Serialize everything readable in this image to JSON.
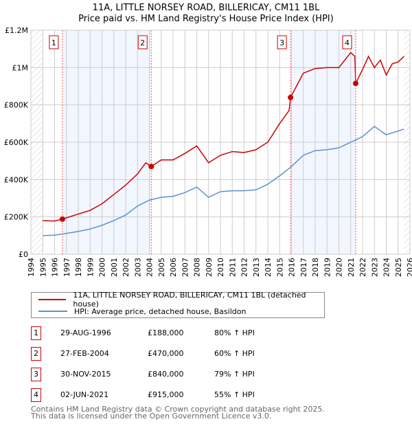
{
  "chart_data": {
    "type": "line",
    "title": "11A, LITTLE NORSEY ROAD, BILLERICAY, CM11 1BL",
    "subtitle": "Price paid vs. HM Land Registry's House Price Index (HPI)",
    "xlim": [
      1994,
      2026
    ],
    "ylim": [
      0,
      1200000
    ],
    "x_ticks": [
      "1994",
      "1995",
      "1996",
      "1997",
      "1998",
      "1999",
      "2000",
      "2001",
      "2002",
      "2003",
      "2004",
      "2005",
      "2006",
      "2007",
      "2008",
      "2009",
      "2010",
      "2011",
      "2012",
      "2013",
      "2014",
      "2015",
      "2016",
      "2017",
      "2018",
      "2019",
      "2020",
      "2021",
      "2022",
      "2023",
      "2024",
      "2025",
      "2026"
    ],
    "y_ticks": [
      {
        "v": 0,
        "label": "£0"
      },
      {
        "v": 200000,
        "label": "£200K"
      },
      {
        "v": 400000,
        "label": "£400K"
      },
      {
        "v": 600000,
        "label": "£600K"
      },
      {
        "v": 800000,
        "label": "£800K"
      },
      {
        "v": 1000000,
        "label": "£1M"
      },
      {
        "v": 1200000,
        "label": "£1.2M"
      }
    ],
    "grid": true,
    "series": [
      {
        "name": "11A, LITTLE NORSEY ROAD, BILLERICAY, CM11 1BL (detached house)",
        "color": "#cc0000",
        "x": [
          1995,
          1996,
          1996.66,
          1997,
          1998,
          1999,
          2000,
          2001,
          2002,
          2003,
          2003.7,
          2004.16,
          2005,
          2006,
          2007,
          2008,
          2009,
          2010,
          2011,
          2012,
          2013,
          2014,
          2015,
          2015.8,
          2015.92,
          2017,
          2018,
          2019,
          2020,
          2021,
          2021.35,
          2021.42,
          2022,
          2022.5,
          2023,
          2023.5,
          2024,
          2024.5,
          2025,
          2025.5
        ],
        "y": [
          180000,
          178000,
          188000,
          195000,
          215000,
          235000,
          270000,
          320000,
          370000,
          430000,
          490000,
          470000,
          505000,
          505000,
          540000,
          580000,
          490000,
          530000,
          550000,
          545000,
          560000,
          600000,
          700000,
          770000,
          840000,
          970000,
          995000,
          1000000,
          1000000,
          1080000,
          1060000,
          915000,
          990000,
          1060000,
          1000000,
          1040000,
          960000,
          1020000,
          1030000,
          1060000
        ]
      },
      {
        "name": "HPI: Average price, detached house, Basildon",
        "color": "#5b8fd4",
        "x": [
          1995,
          1996,
          1997,
          1998,
          1999,
          2000,
          2001,
          2002,
          2003,
          2004,
          2005,
          2006,
          2007,
          2008,
          2009,
          2010,
          2011,
          2012,
          2013,
          2014,
          2015,
          2016,
          2017,
          2018,
          2019,
          2020,
          2021,
          2022,
          2023,
          2024,
          2025,
          2025.5
        ],
        "y": [
          100000,
          102000,
          112000,
          122000,
          135000,
          155000,
          180000,
          210000,
          258000,
          290000,
          305000,
          310000,
          330000,
          360000,
          305000,
          335000,
          340000,
          340000,
          345000,
          375000,
          420000,
          470000,
          530000,
          555000,
          560000,
          570000,
          600000,
          630000,
          685000,
          640000,
          660000,
          670000
        ]
      }
    ],
    "sales": [
      {
        "id": "1",
        "x": 1996.66,
        "y": 188000,
        "date": "29-AUG-1996",
        "price": "£188,000",
        "hpi": "80% ↑ HPI"
      },
      {
        "id": "2",
        "x": 2004.16,
        "y": 470000,
        "date": "27-FEB-2004",
        "price": "£470,000",
        "hpi": "60% ↑ HPI"
      },
      {
        "id": "3",
        "x": 2015.92,
        "y": 840000,
        "date": "30-NOV-2015",
        "price": "£840,000",
        "hpi": "79% ↑ HPI"
      },
      {
        "id": "4",
        "x": 2021.42,
        "y": 915000,
        "date": "02-JUN-2021",
        "price": "£915,000",
        "hpi": "55% ↑ HPI"
      }
    ],
    "legend": "bottom"
  },
  "footer": [
    "Contains HM Land Registry data © Crown copyright and database right 2025.",
    "This data is licensed under the Open Government Licence v3.0."
  ]
}
